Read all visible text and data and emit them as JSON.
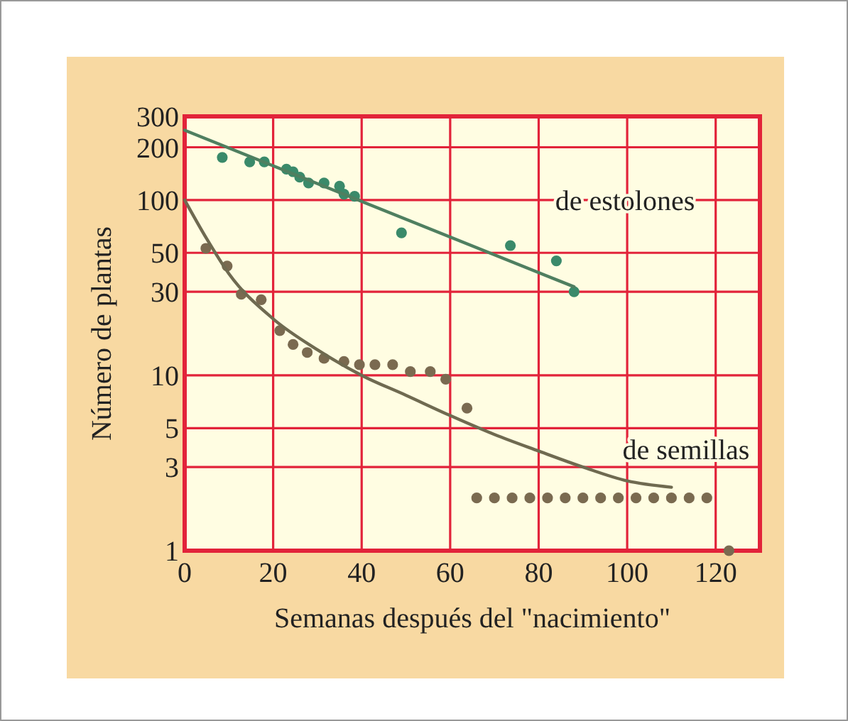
{
  "chart_data": {
    "type": "scatter",
    "xlabel": "Semanas después del \"nacimiento\"",
    "ylabel": "Número de plantas",
    "log": "y",
    "grid": true,
    "marker": "circle",
    "xlim": [
      0,
      130
    ],
    "xticks": [
      0,
      20,
      40,
      60,
      80,
      100,
      120
    ],
    "ylim": [
      1,
      300
    ],
    "yticks": [
      1,
      3,
      5,
      10,
      30,
      50,
      100,
      200,
      300
    ],
    "series": [
      {
        "color": "#3a8a6a",
        "x": [
          8.5,
          14.7,
          18,
          23,
          24.5,
          26,
          28,
          31.5,
          35,
          36,
          38.4,
          49,
          73.6,
          84,
          88
        ],
        "values": [
          175,
          165,
          165,
          150,
          145,
          135,
          125,
          125,
          120,
          108,
          105,
          65,
          55,
          45,
          30
        ]
      },
      {
        "type": "line",
        "name": "de estolones",
        "color": "#4f7f60",
        "marker": "none",
        "x": [
          0,
          88
        ],
        "values": [
          250,
          32
        ]
      },
      {
        "color": "#7a6a50",
        "x": [
          4.8,
          9.6,
          12.8,
          17.3,
          21.5,
          24.5,
          27.7,
          31.5,
          36,
          39.5,
          43,
          47,
          51,
          55.5,
          59,
          63.8,
          66,
          70,
          74,
          78,
          82,
          86,
          90,
          94,
          98,
          102,
          106,
          110,
          114,
          118,
          123
        ],
        "values": [
          53,
          42,
          29,
          27,
          18,
          15,
          13.5,
          12.5,
          12,
          11.5,
          11.5,
          11.5,
          10.5,
          10.5,
          9.5,
          6.5,
          2,
          2,
          2,
          2,
          2,
          2,
          2,
          2,
          2,
          2,
          2,
          2,
          2,
          2,
          1
        ]
      },
      {
        "type": "line",
        "name": "de semillas",
        "color": "#6f6a50",
        "marker": "none",
        "x": [
          0,
          5,
          10,
          20,
          30,
          40,
          50,
          60,
          70,
          80,
          90,
          100,
          110
        ],
        "values": [
          100,
          60,
          38,
          21,
          14,
          10,
          7.7,
          5.9,
          4.6,
          3.7,
          3,
          2.5,
          2.3
        ]
      }
    ]
  }
}
